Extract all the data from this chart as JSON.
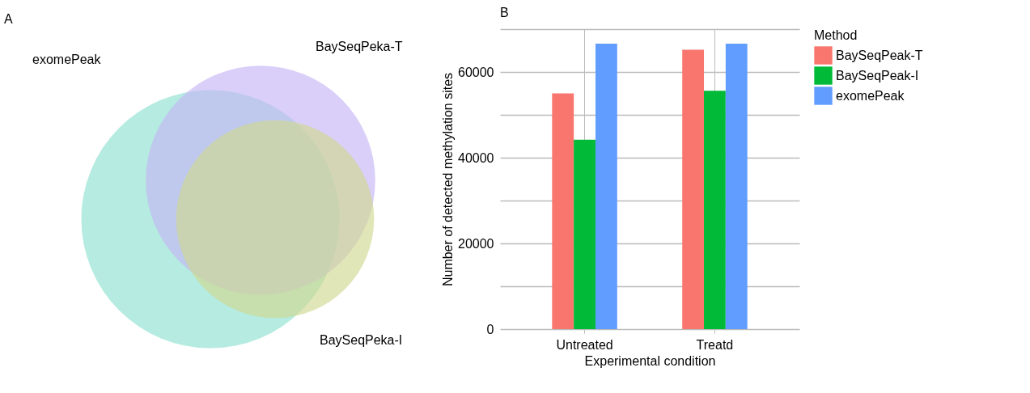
{
  "chart_data": [
    {
      "type": "other",
      "title": "A",
      "annotations": [
        "exomePeak",
        "BaySeqPeka-T",
        "BaySeqPeka-I"
      ]
    },
    {
      "type": "bar",
      "title": "B",
      "xlabel": "Experimental condition",
      "ylabel": "Number of detected methylation sites",
      "legend_title": "Method",
      "categories": [
        "Untreated",
        "Treatd"
      ],
      "series": [
        {
          "name": "BaySeqPeak-T",
          "color": "#f8766d",
          "values": [
            55000,
            65200
          ]
        },
        {
          "name": "BaySeqPeak-I",
          "color": "#00ba38",
          "values": [
            44200,
            55600
          ]
        },
        {
          "name": "exomePeak",
          "color": "#619cff",
          "values": [
            66600,
            66600
          ]
        }
      ],
      "ylim": [
        0,
        70000
      ],
      "yticks": [
        0,
        {
          "value": 10000,
          "label": null
        },
        20000,
        {
          "value": 30000,
          "label": null
        },
        40000,
        {
          "value": 50000,
          "label": null
        },
        60000,
        {
          "value": 70000,
          "label": null
        }
      ],
      "grid": true,
      "legend": "right"
    }
  ]
}
